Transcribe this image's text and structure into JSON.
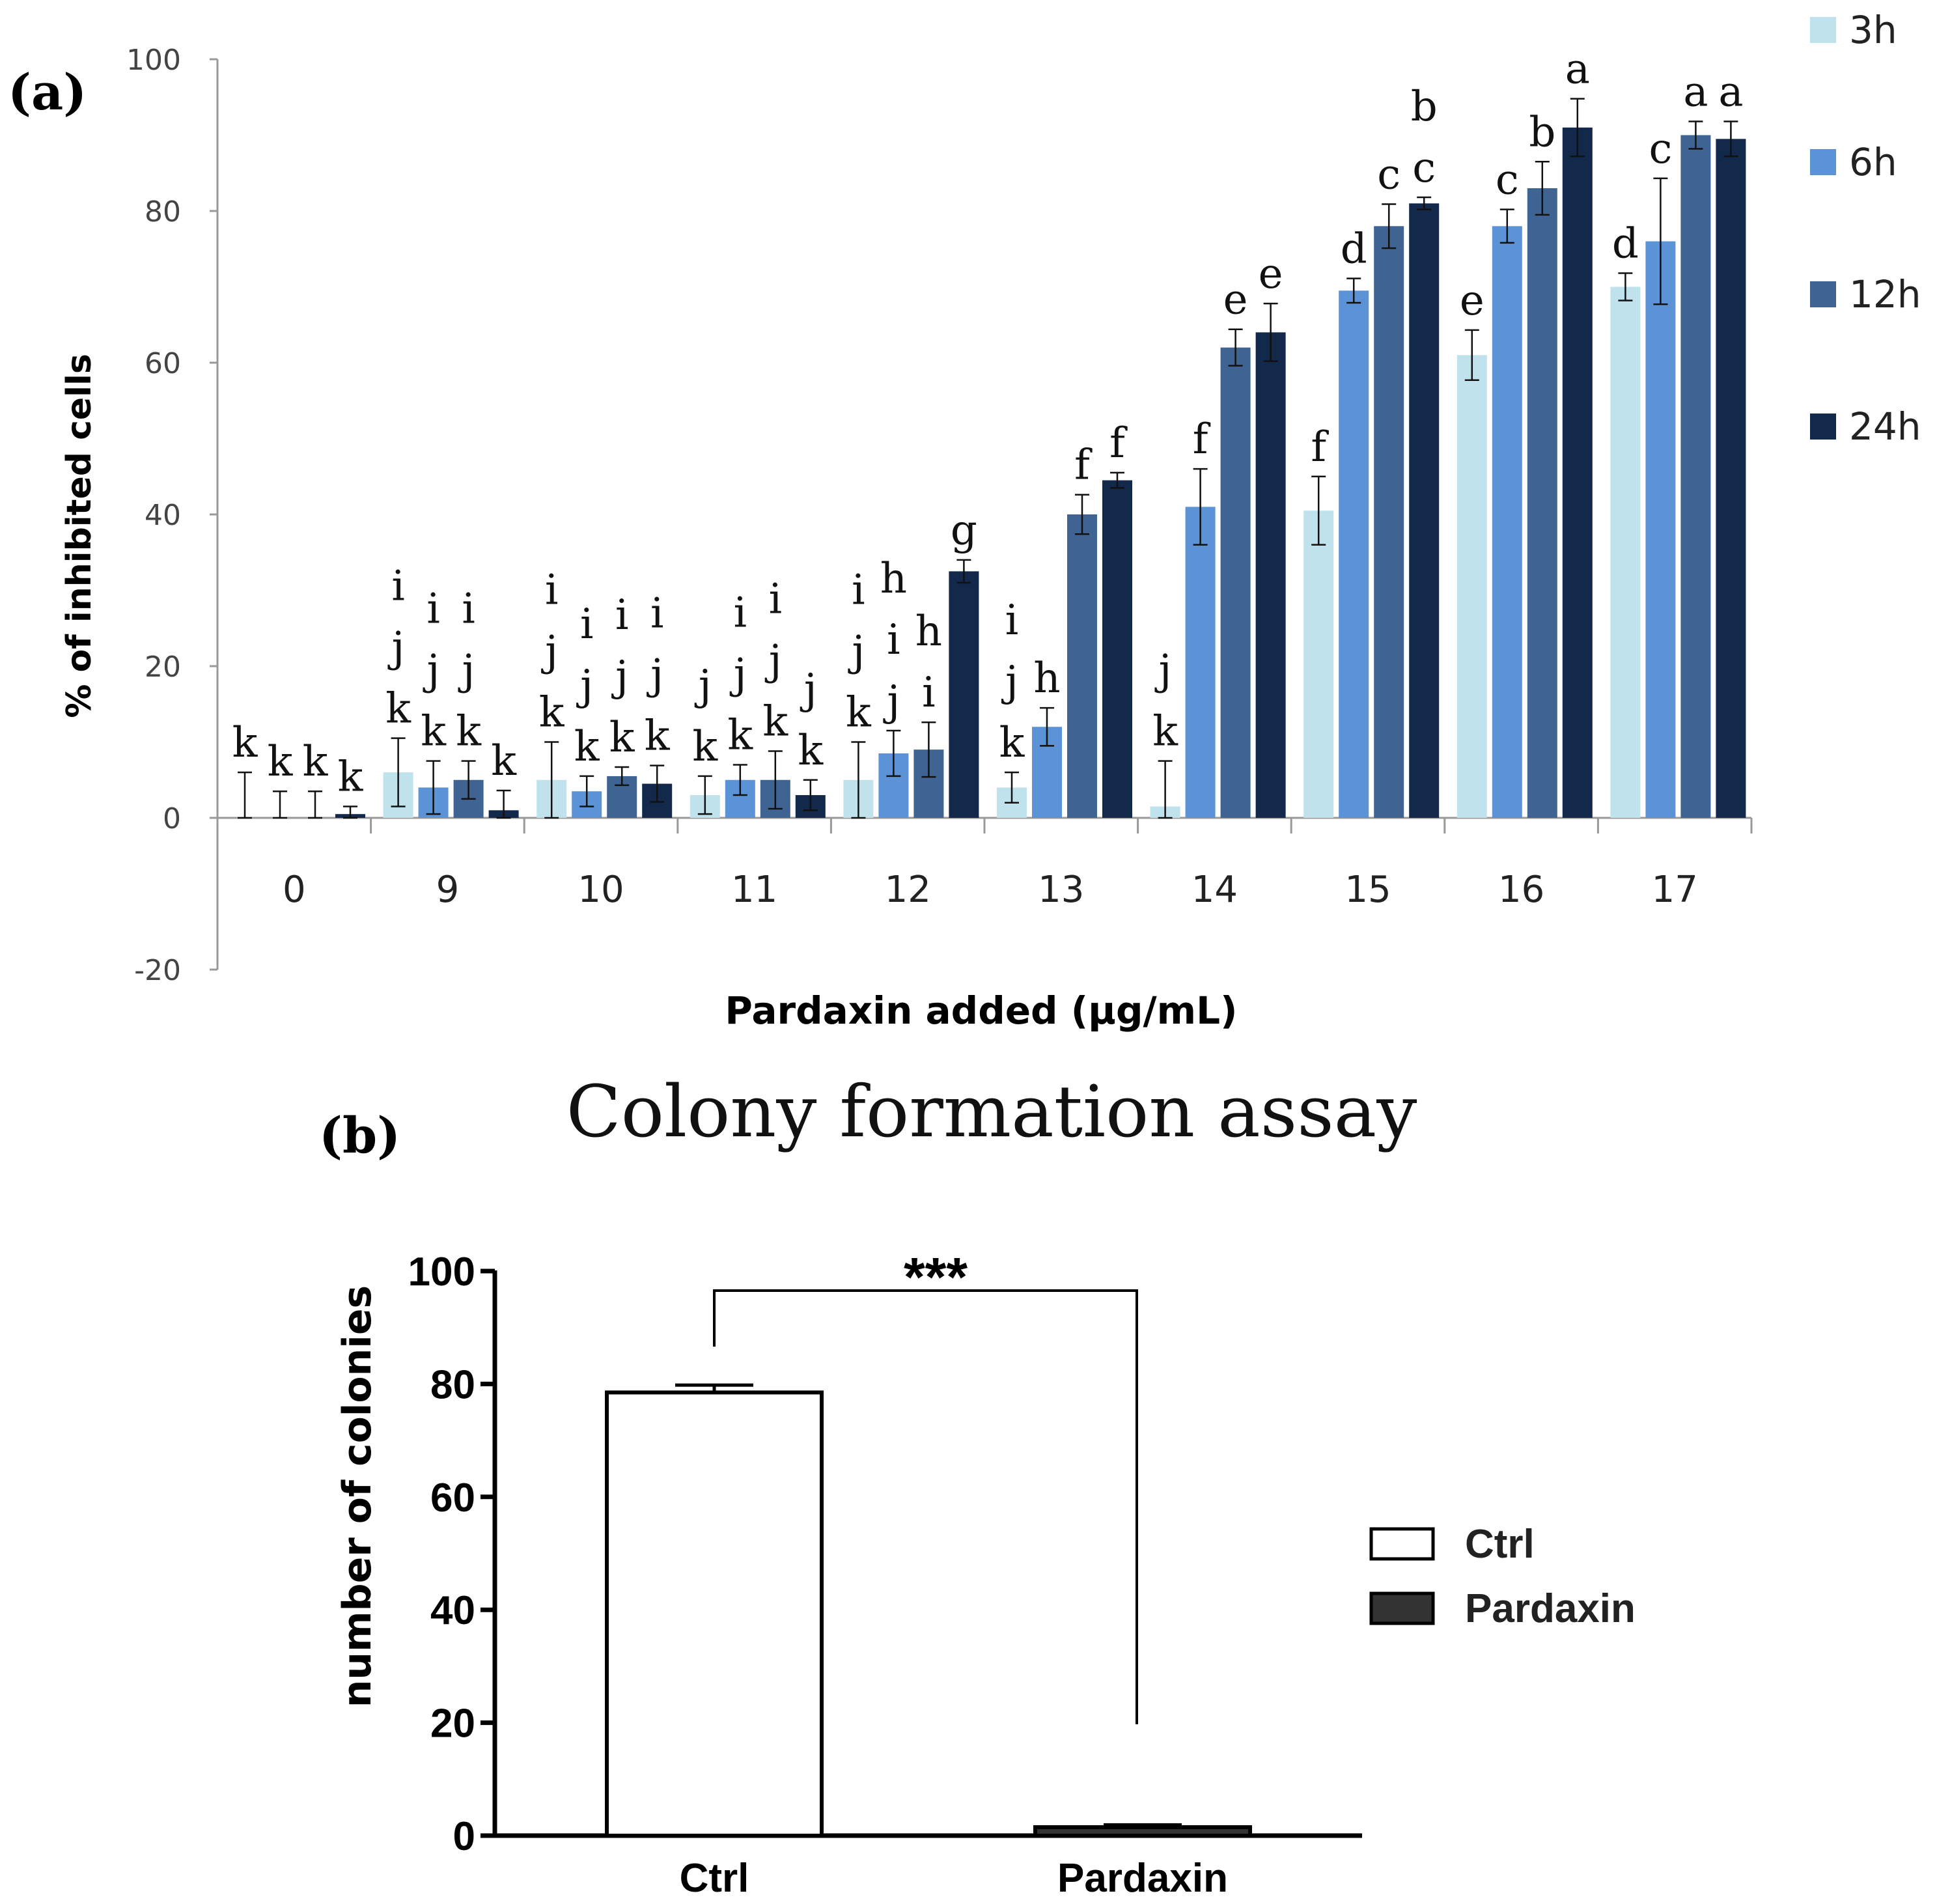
{
  "chart_data": [
    {
      "type": "bar",
      "panel_label": "(a)",
      "xlabel": "Pardaxin added (μg/mL)",
      "ylabel": "% of inhibited cells",
      "ylim": [
        -20,
        100
      ],
      "yticks": [
        "100",
        "80",
        "60",
        "40",
        "20",
        "0",
        "-20"
      ],
      "ytick_values": [
        100,
        80,
        60,
        40,
        20,
        0,
        -20
      ],
      "categories": [
        "0",
        "9",
        "10",
        "11",
        "12",
        "13",
        "14",
        "15",
        "16",
        "17"
      ],
      "legend_position": "top-right",
      "series": [
        {
          "name": "3h",
          "color": "#bfe2ec",
          "values": [
            0,
            6,
            5,
            3,
            5,
            4,
            1.5,
            40.5,
            61,
            70
          ],
          "errors": [
            6,
            4.5,
            5,
            2.5,
            5,
            2,
            6,
            4.5,
            3.3,
            1.8
          ],
          "letters": [
            "k",
            "i\nj\nk",
            "i\nj\nk",
            "j\nk",
            "i\nj\nk",
            "i\nj\nk",
            "j\nk",
            "f",
            "e",
            "d"
          ]
        },
        {
          "name": "6h",
          "color": "#5b93d6",
          "values": [
            0,
            4,
            3.5,
            5,
            8.5,
            12,
            41,
            69.5,
            78,
            76
          ],
          "errors": [
            3.5,
            3.5,
            2,
            2,
            3,
            2.5,
            5,
            1.6,
            2.2,
            8.3
          ],
          "letters": [
            "k",
            "i\nj\nk",
            "i\nj\nk",
            "i\nj\nk",
            "h\ni\nj",
            "h",
            "f",
            "d",
            "c",
            "c"
          ]
        },
        {
          "name": "12h",
          "color": "#3f6494",
          "values": [
            0,
            5,
            5.5,
            5,
            9,
            40,
            62,
            78,
            83,
            90
          ],
          "errors": [
            3.5,
            2.5,
            1.2,
            3.8,
            3.6,
            2.6,
            2.4,
            2.9,
            3.5,
            1.8
          ],
          "letters": [
            "k",
            "i\nj\nk",
            "i\nj\nk",
            "i\nj\nk",
            "h\ni",
            "f",
            "e",
            "c",
            "b",
            "a"
          ]
        },
        {
          "name": "24h",
          "color": "#13294b",
          "values": [
            0.5,
            1,
            4.5,
            3,
            32.5,
            44.5,
            64,
            81,
            91,
            89.5
          ],
          "errors": [
            1,
            2.6,
            2.4,
            2,
            1.5,
            1,
            3.8,
            0.8,
            3.8,
            2.3
          ],
          "letters": [
            "k",
            "k",
            "i\nj\nk",
            "j\nk",
            "g",
            "f",
            "e",
            "b\nc",
            "a",
            "a"
          ]
        }
      ]
    },
    {
      "type": "bar",
      "panel_label": "(b)",
      "title": "Colony formation assay",
      "xlabel": "",
      "ylabel": "number of colonies",
      "ylim": [
        0,
        100
      ],
      "yticks": [
        "100",
        "80",
        "60",
        "40",
        "20",
        "0"
      ],
      "ytick_values": [
        100,
        80,
        60,
        40,
        20,
        0
      ],
      "categories": [
        "Ctrl",
        "Pardaxin"
      ],
      "values": [
        78.5,
        1.5
      ],
      "errors": [
        1.3,
        0.4
      ],
      "colors": [
        "#ffffff",
        "#333333"
      ],
      "legend": [
        "Ctrl",
        "Pardaxin"
      ],
      "legend_position": "right",
      "significance": "***"
    }
  ]
}
